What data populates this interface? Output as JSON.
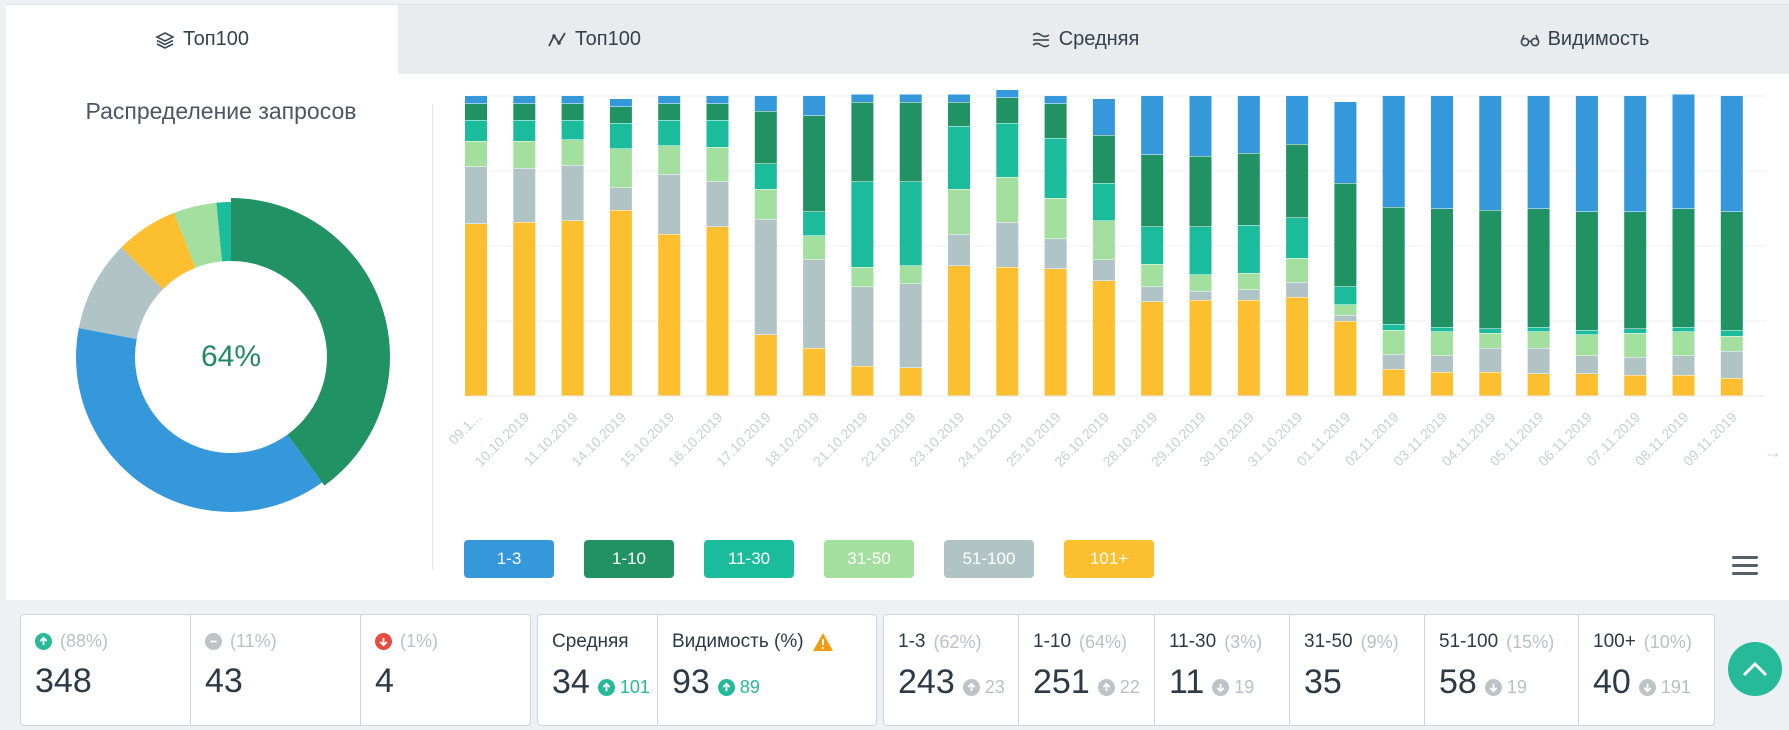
{
  "tabs": [
    {
      "label": "Топ100",
      "icon": "layers-icon"
    },
    {
      "label": "Топ100",
      "icon": "line-chart-icon"
    },
    {
      "label": "Средняя",
      "icon": "lines-icon"
    },
    {
      "label": "Видимость",
      "icon": "glasses-icon"
    }
  ],
  "donut": {
    "title": "Распределение запросов",
    "center_label": "64%"
  },
  "colors": {
    "r1_3": "#3498db",
    "r1_10": "#209263",
    "r11_30": "#1abc9c",
    "r31_50": "#a3df9f",
    "r51_100": "#b0c4c6",
    "r101": "#fbbf2f",
    "up": "#26b99a",
    "down": "#e74c3c",
    "neutral": "#bdc3c7",
    "warn": "#f39c12"
  },
  "chart_data": [
    {
      "type": "pie",
      "title": "Распределение запросов",
      "center_label": "64%",
      "slices": [
        {
          "name": "1-10",
          "value": 40,
          "color": "#209263"
        },
        {
          "name": "1-3",
          "value": 38,
          "color": "#3498db"
        },
        {
          "name": "51-100",
          "value": 9.5,
          "color": "#b0c4c6"
        },
        {
          "name": "101+",
          "value": 6.5,
          "color": "#fbbf2f"
        },
        {
          "name": "31-50",
          "value": 4.5,
          "color": "#a3df9f"
        },
        {
          "name": "11-30",
          "value": 1.5,
          "color": "#1abc9c"
        }
      ]
    },
    {
      "type": "bar",
      "stacked": true,
      "percent": true,
      "grid": true,
      "categories": [
        "09.1...",
        "10.10.2019",
        "11.10.2019",
        "14.10.2019",
        "15.10.2019",
        "16.10.2019",
        "17.10.2019",
        "18.10.2019",
        "21.10.2019",
        "22.10.2019",
        "23.10.2019",
        "24.10.2019",
        "25.10.2019",
        "26.10.2019",
        "28.10.2019",
        "29.10.2019",
        "30.10.2019",
        "31.10.2019",
        "01.11.2019",
        "02.11.2019",
        "03.11.2019",
        "04.11.2019",
        "05.11.2019",
        "06.11.2019",
        "07.11.2019",
        "08.11.2019",
        "09.11.2019"
      ],
      "series": [
        {
          "name": "1-3",
          "color": "#3498db",
          "values": [
            2.5,
            2.5,
            2.5,
            2.5,
            2.5,
            2.5,
            5,
            6.5,
            2.5,
            2.5,
            2.5,
            2.5,
            2.5,
            12,
            19.5,
            20,
            19,
            16,
            27,
            37,
            37.5,
            38,
            37.5,
            38.5,
            38.5,
            38,
            38.5
          ]
        },
        {
          "name": "1-10",
          "color": "#209263",
          "values": [
            5.5,
            5.5,
            5.5,
            5.5,
            5.5,
            5.5,
            17.5,
            32,
            26.5,
            26.5,
            8,
            8.5,
            11.5,
            16,
            24,
            23.5,
            24,
            24.5,
            34.5,
            39,
            39.5,
            39.5,
            39.5,
            39.5,
            39,
            39.5,
            39.5
          ]
        },
        {
          "name": "11-30",
          "color": "#1abc9c",
          "values": [
            7,
            7,
            6.5,
            8.5,
            8.5,
            9,
            8.5,
            8,
            28.5,
            28,
            21,
            18,
            20,
            12.5,
            12.5,
            16,
            16,
            13.5,
            6,
            2,
            1.5,
            1.5,
            1.5,
            1.5,
            1.5,
            1.5,
            2
          ]
        },
        {
          "name": "31-50",
          "color": "#a3df9f",
          "values": [
            8.5,
            9,
            8.5,
            13,
            9.5,
            11.5,
            10,
            8,
            6.5,
            6,
            15,
            15,
            13.5,
            13,
            7.5,
            5.5,
            5.5,
            8,
            3.5,
            8,
            8,
            5,
            5.5,
            7,
            8,
            8,
            5
          ]
        },
        {
          "name": "51-100",
          "color": "#b0c4c6",
          "values": [
            19,
            18,
            18.5,
            7.5,
            20,
            15,
            38.5,
            29.5,
            26.5,
            28,
            10.5,
            15,
            10,
            7,
            5,
            3,
            3.5,
            5,
            2,
            5,
            5.5,
            8,
            8.5,
            6,
            6,
            6.5,
            9
          ]
        },
        {
          "name": "101+",
          "color": "#fbbf2f",
          "values": [
            57.5,
            58,
            58.5,
            62,
            54,
            56.5,
            20.5,
            16,
            10,
            9.5,
            43.5,
            43,
            42.5,
            38.5,
            31.5,
            32,
            32,
            33,
            25,
            9,
            8,
            8,
            7.5,
            7.5,
            7,
            7,
            6
          ]
        }
      ]
    }
  ],
  "legend": [
    {
      "label": "1-3",
      "color": "#3498db"
    },
    {
      "label": "1-10",
      "color": "#209263"
    },
    {
      "label": "11-30",
      "color": "#1abc9c"
    },
    {
      "label": "31-50",
      "color": "#a3df9f"
    },
    {
      "label": "51-100",
      "color": "#b0c4c6"
    },
    {
      "label": "101+",
      "color": "#fbbf2f"
    }
  ],
  "stats": {
    "changes": [
      {
        "pct": "(88%)",
        "value": "348",
        "icon": "arrow-up-circle-icon"
      },
      {
        "pct": "(11%)",
        "value": "43",
        "icon": "minus-circle-icon"
      },
      {
        "pct": "(1%)",
        "value": "4",
        "icon": "arrow-down-circle-icon"
      }
    ],
    "avg": {
      "label": "Средняя",
      "value": "34",
      "delta": "101"
    },
    "visibility": {
      "label": "Видимость (%)",
      "value": "93",
      "delta": "89",
      "icon": "warning-icon"
    },
    "ranges": [
      {
        "label": "1-3",
        "pct": "(62%)",
        "value": "243",
        "delta": "23",
        "dir": "up"
      },
      {
        "label": "1-10",
        "pct": "(64%)",
        "value": "251",
        "delta": "22",
        "dir": "up"
      },
      {
        "label": "11-30",
        "pct": "(3%)",
        "value": "11",
        "delta": "19",
        "dir": "down"
      },
      {
        "label": "31-50",
        "pct": "(9%)",
        "value": "35",
        "delta": "",
        "dir": "none"
      },
      {
        "label": "51-100",
        "pct": "(15%)",
        "value": "58",
        "delta": "19",
        "dir": "down"
      },
      {
        "label": "100+",
        "pct": "(10%)",
        "value": "40",
        "delta": "191",
        "dir": "down"
      }
    ]
  }
}
